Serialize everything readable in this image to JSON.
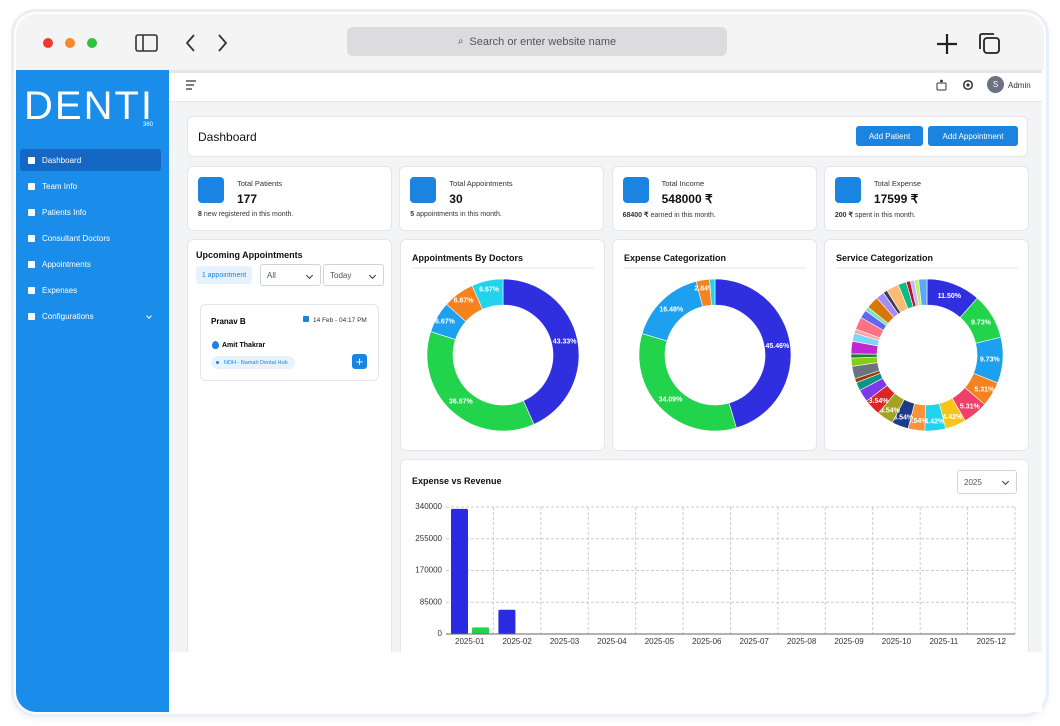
{
  "browser": {
    "search": "Search or enter website name"
  },
  "logo": {
    "name": "DENTI",
    "suffix": "360"
  },
  "sidebar": {
    "items": [
      "Dashboard",
      "Team Info",
      "Patients Info",
      "Consultant Doctors",
      "Appointments",
      "Expenses",
      "Configurations"
    ]
  },
  "topbar": {
    "avatar": "S",
    "user": "Admin"
  },
  "header": {
    "title": "Dashboard",
    "buttons": [
      "Add Patient",
      "Add Appointment"
    ]
  },
  "stats": [
    {
      "label": "Total Patients",
      "value": "177",
      "note_value": "8",
      "note": "new registered in this month."
    },
    {
      "label": "Total Appointments",
      "value": "30",
      "note_value": "5",
      "note": "appointments in this month."
    },
    {
      "label": "Total Income",
      "value": "548000 ₹",
      "note_value": "68400 ₹",
      "note": "earned in this month."
    },
    {
      "label": "Total Expense",
      "value": "17599 ₹",
      "note_value": "200 ₹",
      "note": "spent in this month."
    }
  ],
  "upcoming": {
    "title": "Upcoming Appointments",
    "badge": "1 appointment",
    "filters": [
      "All",
      "Today"
    ],
    "appointment": {
      "patient": "Pranav B",
      "datetime": "14 Feb - 04:17 PM",
      "doctor": "Amit Thakrar",
      "clinic": "NDH - Namah Dental Hub"
    }
  },
  "year_filter": "2025",
  "chart_data": [
    {
      "type": "donut",
      "title": "Appointments By Doctors",
      "values": [
        43.33,
        36.67,
        6.67,
        6.67,
        6.67
      ],
      "value_labels": [
        "43.33%",
        "36.67%",
        "6.67%",
        "6.67%",
        "6.67%"
      ],
      "colors": [
        "#2f2fe0",
        "#22d44c",
        "#1ea0f0",
        "#f5821f",
        "#22d3ee"
      ]
    },
    {
      "type": "donut",
      "title": "Expense Categorization",
      "values": [
        45.46,
        34.09,
        16.48,
        2.84,
        1.13
      ],
      "value_labels": [
        "45.46%",
        "34.09%",
        "16.48%",
        "2.84%",
        null
      ],
      "colors": [
        "#2f2fe0",
        "#22d44c",
        "#1ea0f0",
        "#f5821f",
        "#22d3ee"
      ]
    },
    {
      "type": "donut",
      "title": "Service Categorization",
      "values": [
        11.5,
        9.73,
        9.73,
        5.31,
        5.31,
        4.42,
        4.42,
        3.54,
        3.54,
        3.54,
        3.54,
        2.65,
        1.77,
        0.88,
        2.65,
        1.77,
        0.88,
        2.65,
        1.77,
        0.88,
        2.65,
        1.77,
        0.88,
        2.65,
        1.77,
        0.88,
        2.65,
        1.77,
        0.88,
        0.88,
        0.88,
        1.77
      ],
      "value_labels": [
        "11.50%",
        "9.73%",
        "9.73%",
        "5.31%",
        "5.31%",
        "4.42%",
        "4.42%",
        "3.54%",
        "3.54%",
        "3.54%",
        "3.54%",
        null,
        null,
        null,
        null,
        null,
        null,
        null,
        null,
        null,
        null,
        null,
        null,
        null,
        null,
        null,
        null,
        null,
        null,
        null,
        null,
        null
      ],
      "colors": [
        "#2f2fe0",
        "#22d44c",
        "#1ea0f0",
        "#f5821f",
        "#f0406a",
        "#f5c518",
        "#22d3ee",
        "#fb923c",
        "#1e3a8a",
        "#a3a321",
        "#dc2626",
        "#7c3aed",
        "#0d9488",
        "#92400e",
        "#6b7280",
        "#84cc16",
        "#15803d",
        "#c026d3",
        "#7dd3fc",
        "#fca5a5",
        "#fb7185",
        "#6366f1",
        "#6ee7b7",
        "#d97706",
        "#a78bfa",
        "#334155",
        "#fdba74",
        "#10b981",
        "#be123c",
        "#c4b5fd",
        "#bef264",
        "#60a5fa"
      ]
    },
    {
      "type": "bar",
      "title": "Expense vs Revenue",
      "categories": [
        "2025-01",
        "2025-02",
        "2025-03",
        "2025-04",
        "2025-05",
        "2025-06",
        "2025-07",
        "2025-08",
        "2025-09",
        "2025-10",
        "2025-11",
        "2025-12"
      ],
      "series": [
        {
          "color": "#2a2ae0",
          "values": [
            335000,
            65000,
            0,
            0,
            0,
            0,
            0,
            0,
            0,
            0,
            0,
            0
          ]
        },
        {
          "color": "#22d44c",
          "values": [
            17599,
            0,
            0,
            0,
            0,
            0,
            0,
            0,
            0,
            0,
            0,
            0
          ]
        }
      ],
      "ylim": [
        0,
        340000
      ],
      "yticks": [
        0,
        85000,
        170000,
        255000,
        340000
      ],
      "grid": true
    }
  ]
}
